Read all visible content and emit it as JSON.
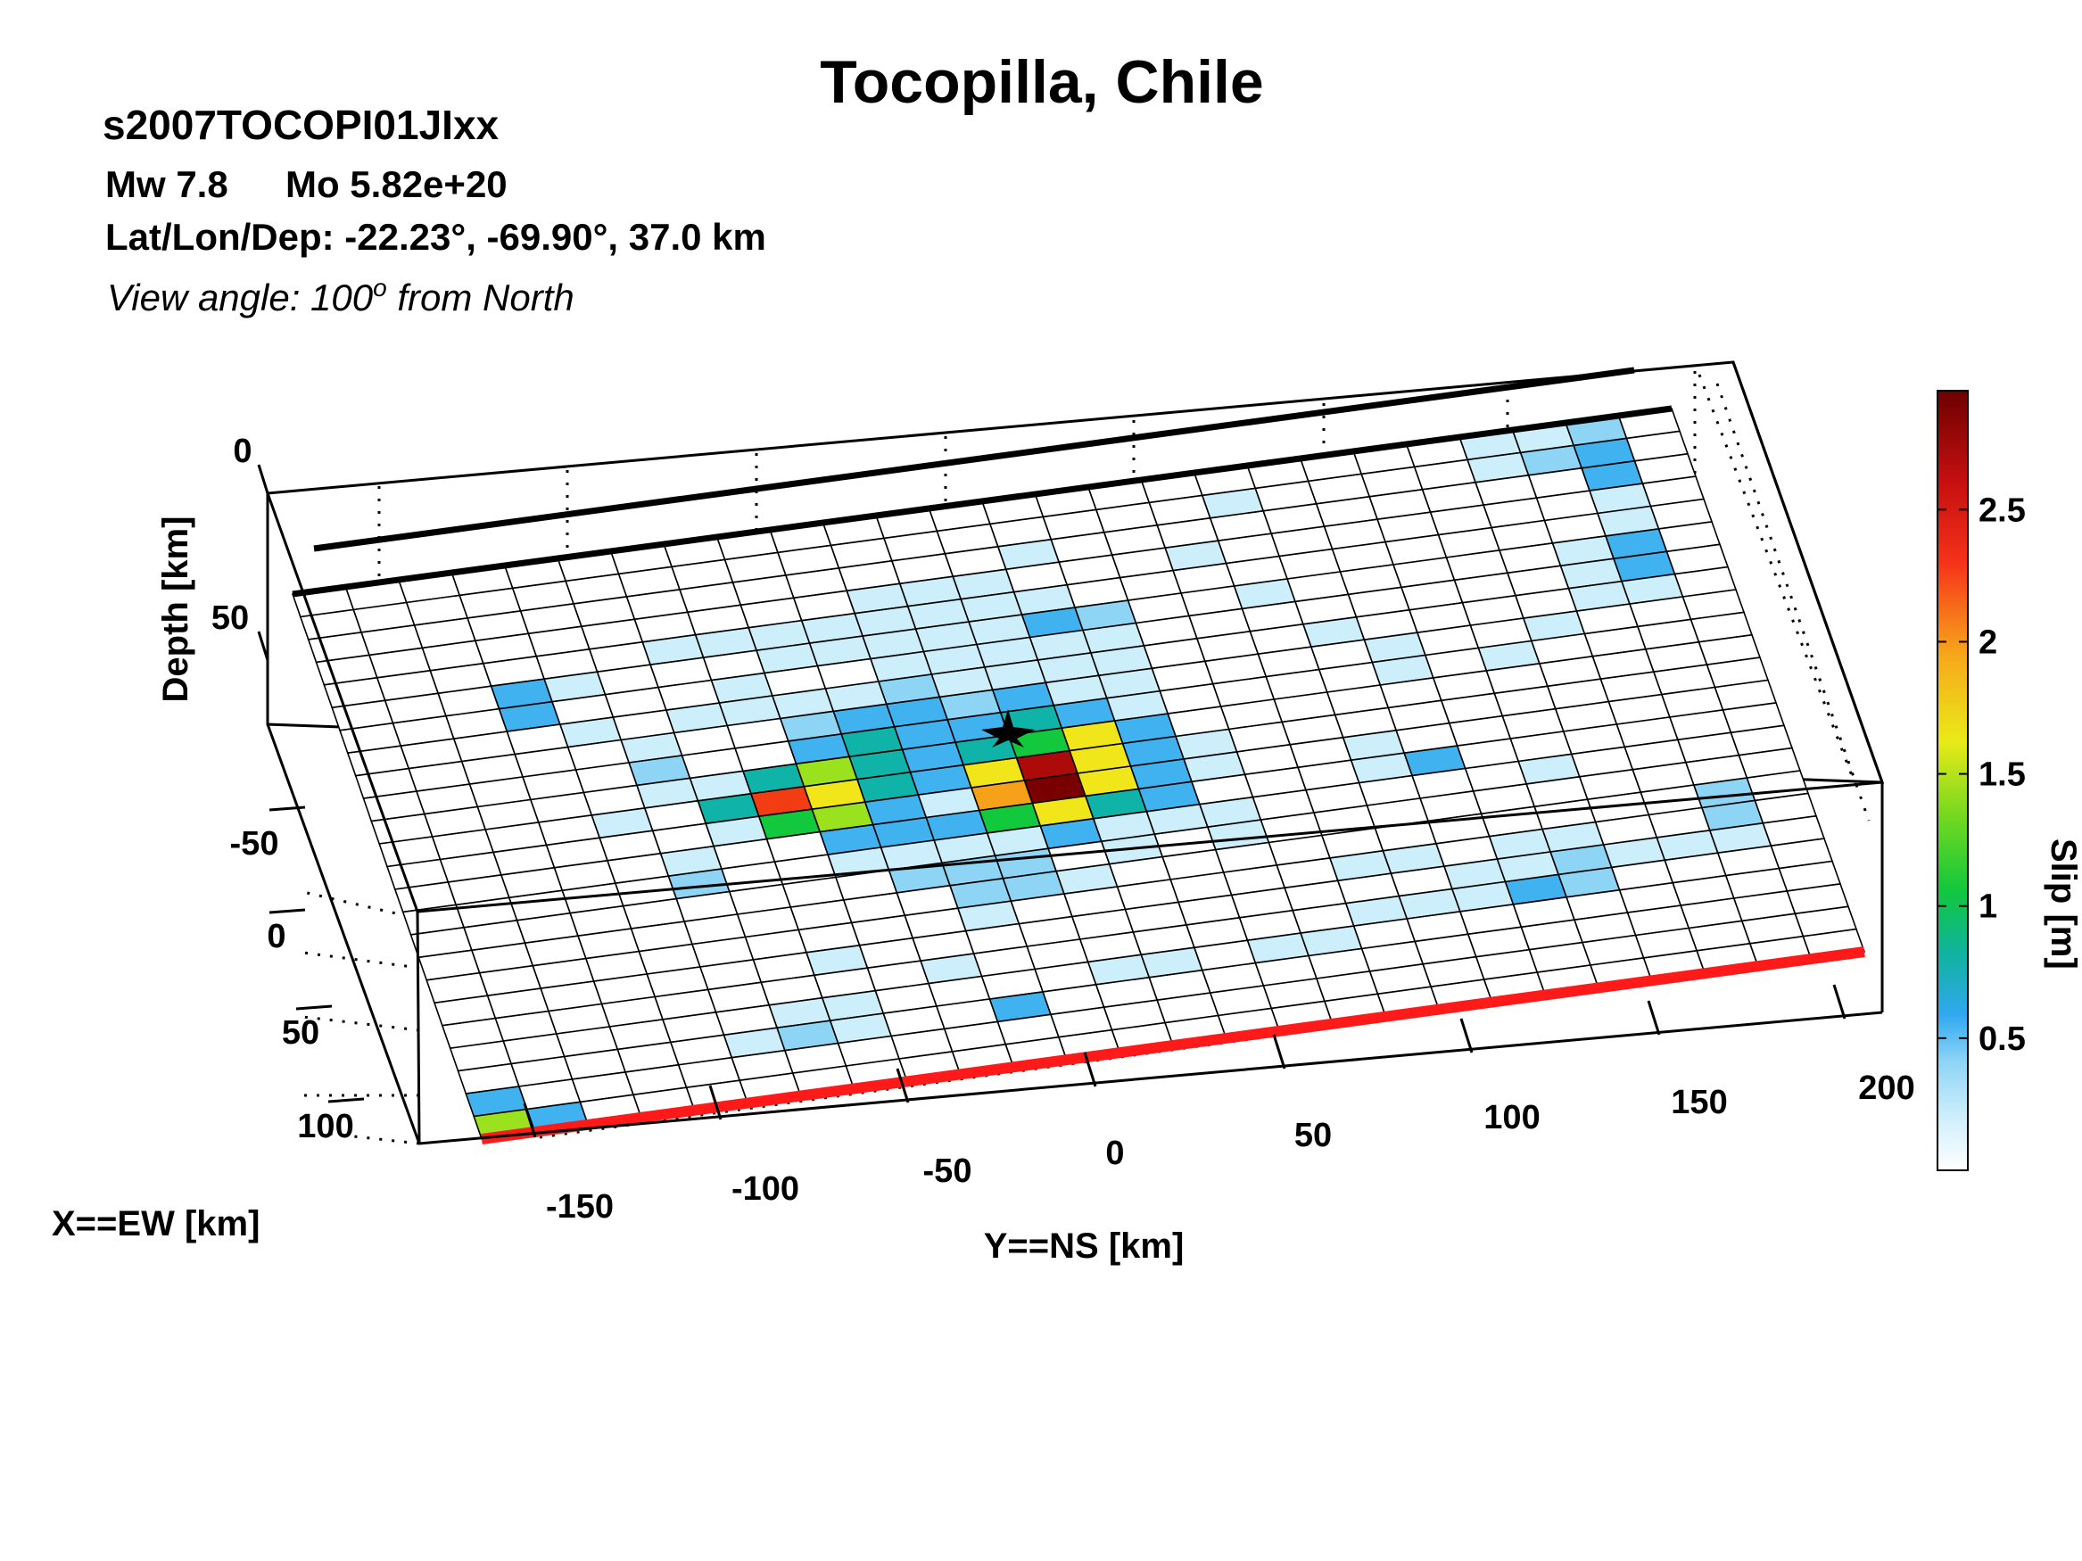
{
  "header": {
    "title": "Tocopilla, Chile",
    "event_id": "s2007TOCOPI01JIxx",
    "magnitude": "Mw 7.8",
    "moment": "Mo 5.82e+20",
    "location": "Lat/Lon/Dep: -22.23°, -69.90°, 37.0 km",
    "view_angle_prefix": "View angle: 100",
    "view_angle_sup": "o",
    "view_angle_suffix": " from North"
  },
  "chart_data": {
    "type": "heatmap",
    "title": "Tocopilla, Chile",
    "view": "3d",
    "xlabel": "X==EW [km]",
    "ylabel": "Y==NS [km]",
    "zlabel": "Depth [km]",
    "colorbar_label": "Slip [m]",
    "x_ticks": [
      "-50",
      "0",
      "50",
      "100"
    ],
    "y_ticks": [
      "-150",
      "-100",
      "-50",
      "0",
      "50",
      "100",
      "150",
      "200"
    ],
    "z_ticks": [
      "0",
      "50"
    ],
    "colorbar_ticks": [
      "0.5",
      "1",
      "1.5",
      "2",
      "2.5"
    ],
    "slip_range_m": [
      0,
      2.95
    ],
    "colormap": [
      "#ffffff",
      "#cdeefb",
      "#8dd4f5",
      "#40b2ef",
      "#10b3a8",
      "#12c83c",
      "#9ae21e",
      "#f0e61a",
      "#f7a11a",
      "#f23c14",
      "#ad0a0a",
      "#7a0000"
    ],
    "grid": {
      "rows": 24,
      "cols": 26,
      "along_strike": "Y==NS",
      "down_dip": "depth"
    },
    "slip_cells_m": [
      [
        0,
        0,
        0,
        0,
        0,
        0,
        0,
        0,
        0,
        0,
        0,
        0,
        0,
        0,
        0,
        0,
        0,
        0,
        0,
        0,
        0,
        0,
        0.3,
        0.4,
        0.45,
        0
      ],
      [
        0,
        0,
        0,
        0,
        0,
        0,
        0,
        0,
        0,
        0,
        0,
        0,
        0,
        0,
        0,
        0,
        0,
        0.1,
        0,
        0,
        0,
        0,
        0.25,
        0.45,
        0.8,
        0
      ],
      [
        0,
        0,
        0,
        0,
        0,
        0,
        0,
        0,
        0,
        0,
        0,
        0,
        0,
        0.1,
        0,
        0,
        0,
        0,
        0,
        0,
        0,
        0,
        0,
        0,
        0.9,
        0
      ],
      [
        0,
        0,
        0,
        0,
        0,
        0,
        0,
        0,
        0,
        0,
        0.1,
        0.15,
        0.2,
        0,
        0,
        0,
        0.1,
        0,
        0,
        0,
        0,
        0,
        0,
        0,
        0.2,
        0
      ],
      [
        0,
        0,
        0,
        0,
        0,
        0,
        0.15,
        0.2,
        0.15,
        0.2,
        0.2,
        0.15,
        0.2,
        0.25,
        0,
        0,
        0,
        0,
        0,
        0,
        0,
        0,
        0,
        0,
        0.3,
        0
      ],
      [
        0,
        0,
        0,
        0.9,
        0.2,
        0,
        0,
        0,
        0.15,
        0.2,
        0.25,
        0.25,
        0.2,
        0.7,
        0.6,
        0,
        0,
        0.1,
        0,
        0,
        0,
        0,
        0,
        0.25,
        0.9,
        0
      ],
      [
        0,
        0,
        0,
        0.9,
        0,
        0,
        0,
        0.1,
        0,
        0,
        0.2,
        0.15,
        0.25,
        0.2,
        0.1,
        0,
        0,
        0,
        0,
        0,
        0,
        0,
        0,
        0.2,
        0.9,
        0
      ],
      [
        0,
        0,
        0,
        0,
        0.3,
        0,
        0.1,
        0.1,
        0.15,
        0.2,
        0.5,
        0.2,
        0.1,
        0.3,
        0.2,
        0,
        0,
        0,
        0.15,
        0,
        0,
        0,
        0,
        0.15,
        0.3,
        0
      ],
      [
        0,
        0,
        0,
        0,
        0,
        0.35,
        0,
        0,
        0.6,
        0.7,
        0.9,
        0.6,
        0.7,
        0.3,
        0.15,
        0,
        0,
        0,
        0,
        0.2,
        0,
        0,
        0.15,
        0,
        0,
        0
      ],
      [
        0,
        0,
        0,
        0,
        0,
        0.6,
        0,
        0,
        0.9,
        1.1,
        0.8,
        0.9,
        1.0,
        0.7,
        0.2,
        0,
        0,
        0,
        0,
        0.25,
        0,
        0.1,
        0,
        0,
        0,
        0
      ],
      [
        0,
        0,
        0,
        0,
        0,
        0.2,
        0.3,
        1.1,
        1.6,
        1.2,
        0.9,
        1.0,
        1.4,
        1.8,
        0.7,
        0,
        0,
        0,
        0,
        0,
        0,
        0,
        0,
        0,
        0,
        0
      ],
      [
        0,
        0,
        0,
        0,
        0.2,
        0,
        1.2,
        2.3,
        1.8,
        1.1,
        0.7,
        1.9,
        2.8,
        2.0,
        0.9,
        0.2,
        0,
        0,
        0,
        0,
        0,
        0,
        0,
        0,
        0,
        0
      ],
      [
        0,
        0,
        0,
        0,
        0,
        0,
        0.3,
        1.3,
        1.5,
        0.9,
        0.4,
        2.2,
        2.95,
        1.9,
        0.9,
        0.15,
        0,
        0,
        0.2,
        0,
        0,
        0,
        0,
        0,
        0,
        0
      ],
      [
        0,
        0,
        0,
        0,
        0,
        0.3,
        0,
        0,
        0.9,
        0.9,
        0.7,
        1.4,
        1.9,
        1.0,
        0.7,
        0,
        0,
        0,
        0.15,
        0.7,
        0,
        0,
        0,
        0,
        0,
        0
      ],
      [
        0,
        0,
        0,
        0,
        0,
        0.6,
        0,
        0,
        0.2,
        0.2,
        0.3,
        0.4,
        0.9,
        0.2,
        0.2,
        0.15,
        0,
        0,
        0,
        0,
        0,
        0.15,
        0,
        0,
        0,
        0
      ],
      [
        0,
        0,
        0,
        0,
        0,
        0,
        0,
        0,
        0,
        0.6,
        0.6,
        0.5,
        0,
        0.2,
        0,
        0.3,
        0,
        0,
        0,
        0,
        0,
        0,
        0,
        0,
        0,
        0
      ],
      [
        0,
        0,
        0,
        0,
        0,
        0,
        0,
        0,
        0,
        0,
        0.5,
        0.6,
        0.2,
        0,
        0,
        0,
        0,
        0,
        0,
        0,
        0,
        0,
        0,
        0,
        0.6,
        0
      ],
      [
        0,
        0,
        0,
        0,
        0,
        0,
        0,
        0,
        0,
        0,
        0.2,
        0,
        0,
        0,
        0,
        0,
        0,
        0.2,
        0.2,
        0,
        0.15,
        0.25,
        0,
        0,
        0.65,
        0
      ],
      [
        0,
        0,
        0,
        0,
        0,
        0,
        0,
        0.3,
        0,
        0,
        0,
        0,
        0,
        0,
        0,
        0,
        0,
        0,
        0,
        0.2,
        0.3,
        0.5,
        0.2,
        0.15,
        0.1,
        0
      ],
      [
        0,
        0,
        0,
        0,
        0,
        0,
        0,
        0,
        0,
        0.2,
        0,
        0,
        0,
        0,
        0,
        0,
        0,
        0.25,
        0.3,
        0.4,
        0.7,
        0.6,
        0,
        0,
        0,
        0
      ],
      [
        0,
        0,
        0,
        0,
        0,
        0,
        0.2,
        0.3,
        0,
        0,
        0,
        0,
        0.15,
        0.2,
        0,
        0.3,
        0.25,
        0,
        0,
        0,
        0,
        0,
        0,
        0,
        0,
        0
      ],
      [
        0,
        0,
        0,
        0,
        0,
        0.3,
        0.6,
        0.3,
        0,
        0,
        0.9,
        0,
        0,
        0,
        0,
        0,
        0,
        0,
        0,
        0,
        0,
        0,
        0,
        0,
        0,
        0
      ],
      [
        0.7,
        0,
        0,
        0,
        0,
        0,
        0,
        0,
        0,
        0,
        0,
        0,
        0,
        0,
        0,
        0,
        0,
        0,
        0,
        0,
        0,
        0,
        0,
        0,
        0,
        0
      ],
      [
        1.5,
        0.8,
        0,
        0,
        0,
        0,
        0,
        0,
        0,
        0,
        0,
        0,
        0,
        0,
        0,
        0,
        0,
        0,
        0,
        0,
        0,
        0,
        0,
        0,
        0,
        0
      ]
    ]
  }
}
